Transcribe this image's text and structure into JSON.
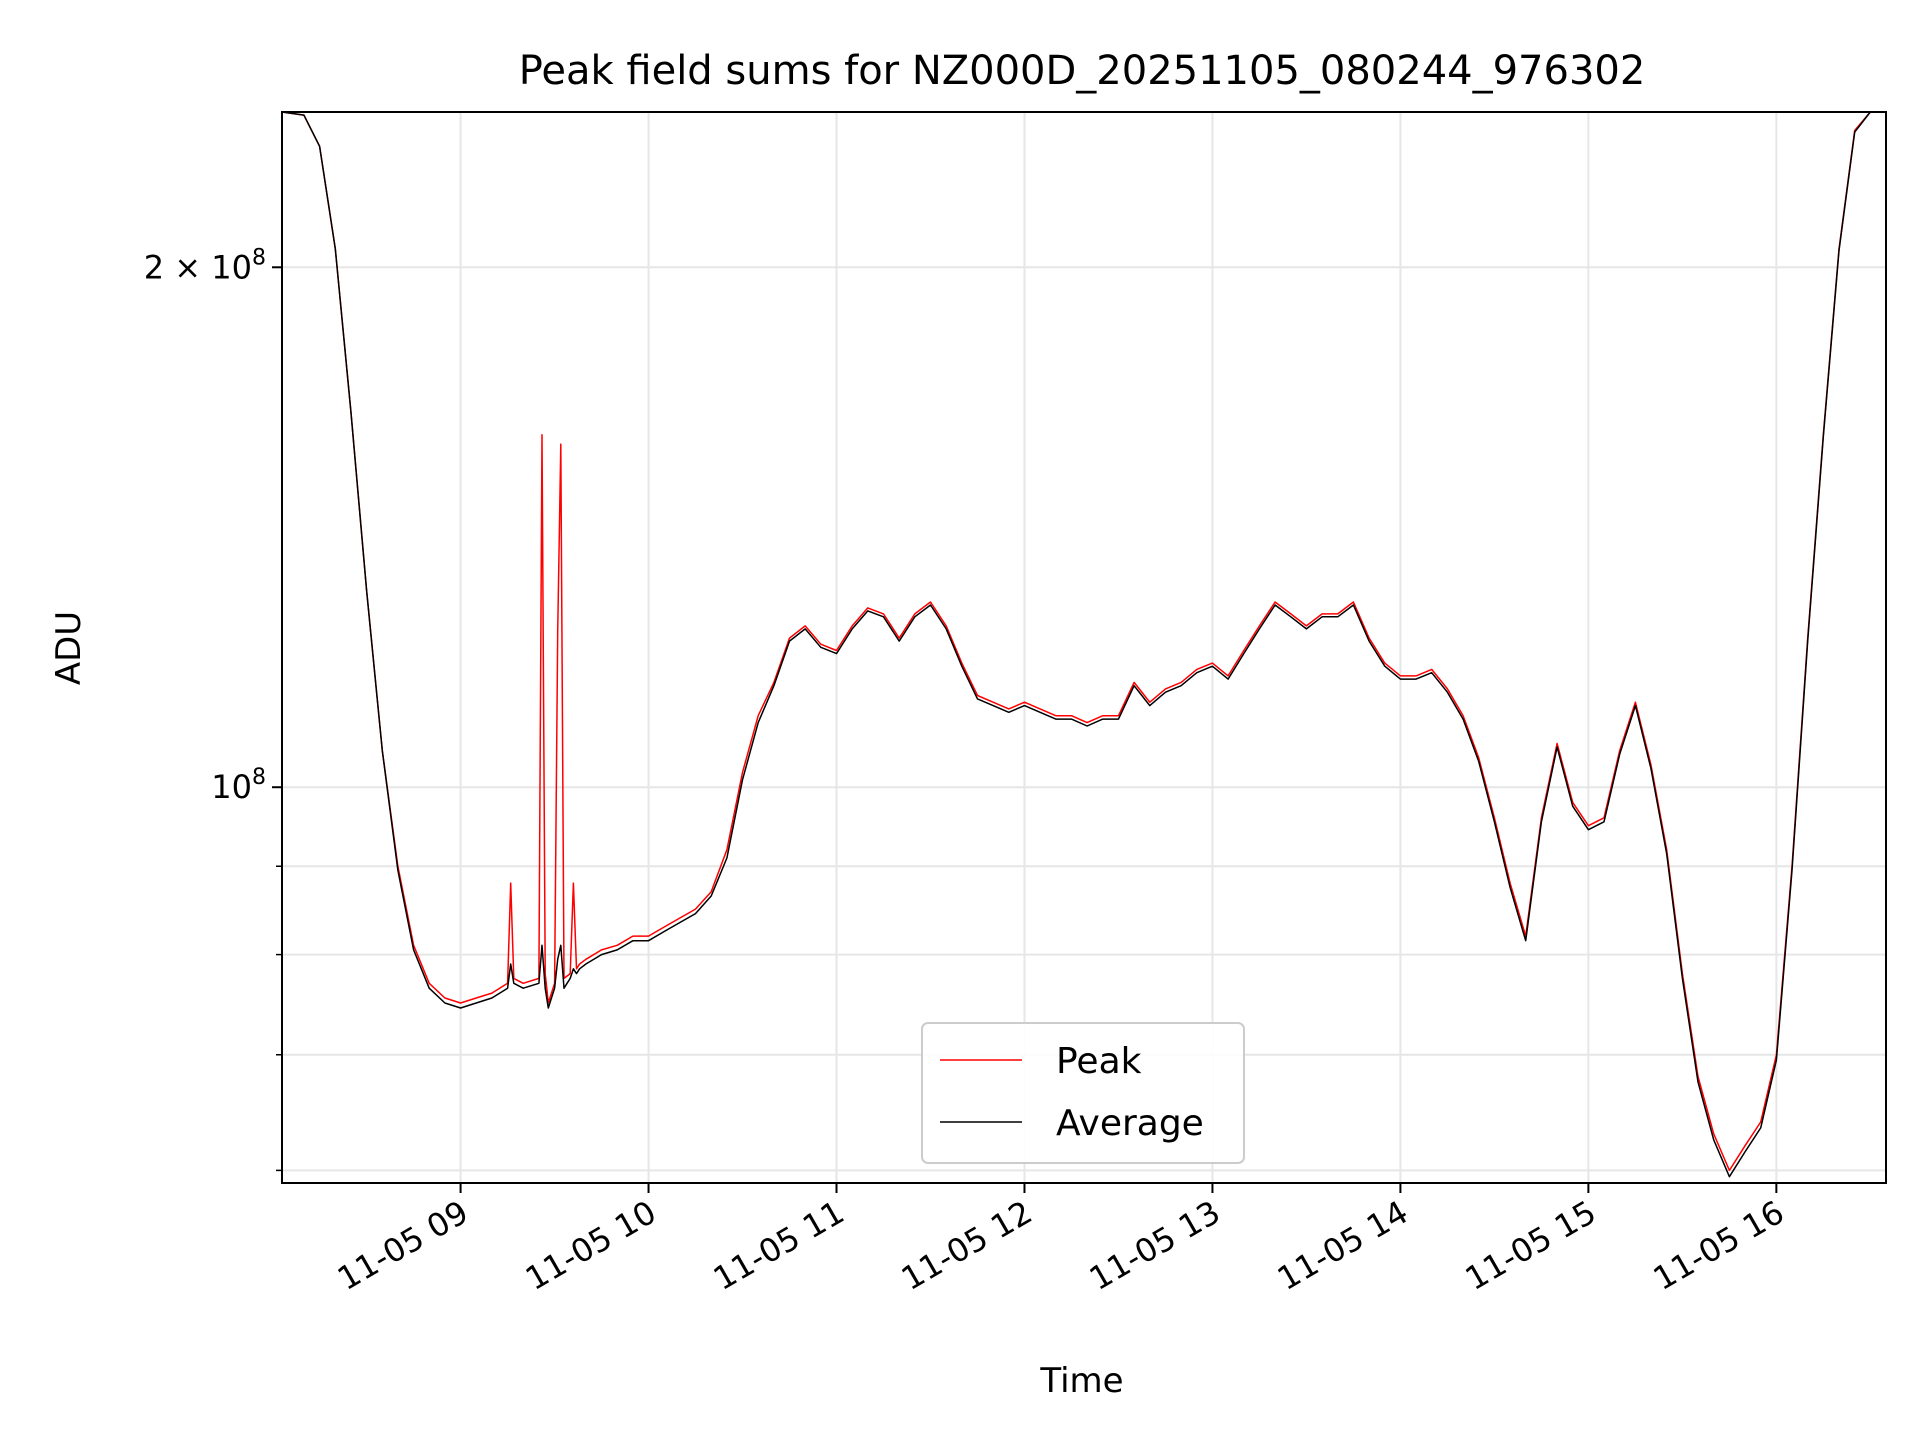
{
  "chart_data": {
    "type": "line",
    "title": "Peak field sums for NZ000D_20251105_080244_976302",
    "xlabel": "Time",
    "ylabel": "ADU",
    "yscale": "log",
    "x_range": [
      "2025-11-05 08:03",
      "2025-11-05 16:35"
    ],
    "ylim": [
      59000000,
      246000000
    ],
    "grid": true,
    "legend_position": "lower center",
    "x_ticks": [
      "11-05 09",
      "11-05 10",
      "11-05 11",
      "11-05 12",
      "11-05 13",
      "11-05 14",
      "11-05 15",
      "11-05 16"
    ],
    "y_ticks": [
      {
        "value": 100000000,
        "label": "10",
        "exp": "8"
      },
      {
        "value": 200000000,
        "label": "2 × 10",
        "exp": "8"
      }
    ],
    "y_minor_ticks": [
      60000000,
      70000000,
      80000000,
      90000000
    ],
    "series": [
      {
        "name": "Peak",
        "color": "#ff0000",
        "x": [
          "08:03",
          "08:10",
          "08:15",
          "08:20",
          "08:25",
          "08:30",
          "08:35",
          "08:40",
          "08:45",
          "08:50",
          "08:55",
          "09:00",
          "09:05",
          "09:10",
          "09:15",
          "09:16",
          "09:17",
          "09:20",
          "09:25",
          "09:26",
          "09:27",
          "09:28",
          "09:30",
          "09:31",
          "09:32",
          "09:33",
          "09:35",
          "09:36",
          "09:37",
          "09:38",
          "09:40",
          "09:45",
          "09:50",
          "09:55",
          "10:00",
          "10:05",
          "10:10",
          "10:15",
          "10:20",
          "10:25",
          "10:30",
          "10:35",
          "10:40",
          "10:45",
          "10:50",
          "10:55",
          "11:00",
          "11:05",
          "11:10",
          "11:15",
          "11:20",
          "11:25",
          "11:30",
          "11:35",
          "11:40",
          "11:45",
          "11:50",
          "11:55",
          "12:00",
          "12:05",
          "12:10",
          "12:15",
          "12:20",
          "12:25",
          "12:30",
          "12:35",
          "12:40",
          "12:45",
          "12:50",
          "12:55",
          "13:00",
          "13:05",
          "13:10",
          "13:15",
          "13:20",
          "13:25",
          "13:30",
          "13:35",
          "13:40",
          "13:45",
          "13:50",
          "13:55",
          "14:00",
          "14:05",
          "14:10",
          "14:15",
          "14:20",
          "14:25",
          "14:30",
          "14:35",
          "14:40",
          "14:45",
          "14:50",
          "14:55",
          "15:00",
          "15:05",
          "15:10",
          "15:15",
          "15:20",
          "15:25",
          "15:30",
          "15:35",
          "15:40",
          "15:45",
          "15:50",
          "15:55",
          "16:00",
          "16:05",
          "16:10",
          "16:15",
          "16:20",
          "16:25",
          "16:30",
          "16:35"
        ],
        "y": [
          246000000,
          245000000,
          235000000,
          205000000,
          165000000,
          130000000,
          105000000,
          90000000,
          81000000,
          77000000,
          75500000,
          75000000,
          75500000,
          76000000,
          77000000,
          88000000,
          77500000,
          77000000,
          77500000,
          160000000,
          78000000,
          75000000,
          77000000,
          123000000,
          158000000,
          77500000,
          78000000,
          88000000,
          78500000,
          79000000,
          79500000,
          80500000,
          81000000,
          82000000,
          82000000,
          83000000,
          84000000,
          85000000,
          87000000,
          92000000,
          102000000,
          110000000,
          115000000,
          122000000,
          124000000,
          121000000,
          120000000,
          124000000,
          127000000,
          126000000,
          122000000,
          126000000,
          128000000,
          124000000,
          118000000,
          113000000,
          112000000,
          111000000,
          112000000,
          111000000,
          110000000,
          110000000,
          109000000,
          110000000,
          110000000,
          115000000,
          112000000,
          114000000,
          115000000,
          117000000,
          118000000,
          116000000,
          120000000,
          124000000,
          128000000,
          126000000,
          124000000,
          126000000,
          126000000,
          128000000,
          122000000,
          118000000,
          116000000,
          116000000,
          117000000,
          114000000,
          110000000,
          104000000,
          96000000,
          88000000,
          82000000,
          96000000,
          106000000,
          98000000,
          95000000,
          96000000,
          105000000,
          112000000,
          103000000,
          92000000,
          78000000,
          68000000,
          63000000,
          60000000,
          62000000,
          64000000,
          70000000,
          90000000,
          122000000,
          160000000,
          205000000,
          240000000,
          246000000,
          246000000
        ]
      },
      {
        "name": "Average",
        "color": "#000000",
        "x": [
          "08:03",
          "08:10",
          "08:15",
          "08:20",
          "08:25",
          "08:30",
          "08:35",
          "08:40",
          "08:45",
          "08:50",
          "08:55",
          "09:00",
          "09:05",
          "09:10",
          "09:15",
          "09:16",
          "09:17",
          "09:20",
          "09:25",
          "09:26",
          "09:27",
          "09:28",
          "09:30",
          "09:31",
          "09:32",
          "09:33",
          "09:35",
          "09:36",
          "09:37",
          "09:38",
          "09:40",
          "09:45",
          "09:50",
          "09:55",
          "10:00",
          "10:05",
          "10:10",
          "10:15",
          "10:20",
          "10:25",
          "10:30",
          "10:35",
          "10:40",
          "10:45",
          "10:50",
          "10:55",
          "11:00",
          "11:05",
          "11:10",
          "11:15",
          "11:20",
          "11:25",
          "11:30",
          "11:35",
          "11:40",
          "11:45",
          "11:50",
          "11:55",
          "12:00",
          "12:05",
          "12:10",
          "12:15",
          "12:20",
          "12:25",
          "12:30",
          "12:35",
          "12:40",
          "12:45",
          "12:50",
          "12:55",
          "13:00",
          "13:05",
          "13:10",
          "13:15",
          "13:20",
          "13:25",
          "13:30",
          "13:35",
          "13:40",
          "13:45",
          "13:50",
          "13:55",
          "14:00",
          "14:05",
          "14:10",
          "14:15",
          "14:20",
          "14:25",
          "14:30",
          "14:35",
          "14:40",
          "14:45",
          "14:50",
          "14:55",
          "15:00",
          "15:05",
          "15:10",
          "15:15",
          "15:20",
          "15:25",
          "15:30",
          "15:35",
          "15:40",
          "15:45",
          "15:50",
          "15:55",
          "16:00",
          "16:05",
          "16:10",
          "16:15",
          "16:20",
          "16:25",
          "16:30",
          "16:35"
        ],
        "y": [
          246000000,
          245000000,
          235000000,
          205000000,
          165000000,
          130000000,
          105000000,
          89500000,
          80500000,
          76500000,
          75000000,
          74500000,
          75000000,
          75500000,
          76500000,
          79000000,
          77000000,
          76500000,
          77000000,
          81000000,
          76500000,
          74500000,
          76500000,
          79500000,
          81000000,
          76500000,
          77500000,
          78500000,
          78000000,
          78500000,
          79000000,
          80000000,
          80500000,
          81500000,
          81500000,
          82500000,
          83500000,
          84500000,
          86500000,
          91000000,
          101000000,
          109000000,
          114500000,
          121500000,
          123500000,
          120500000,
          119500000,
          123500000,
          126500000,
          125500000,
          121500000,
          125500000,
          127500000,
          123500000,
          117500000,
          112500000,
          111500000,
          110500000,
          111500000,
          110500000,
          109500000,
          109500000,
          108500000,
          109500000,
          109500000,
          114500000,
          111500000,
          113500000,
          114500000,
          116500000,
          117500000,
          115500000,
          119500000,
          123500000,
          127500000,
          125500000,
          123500000,
          125500000,
          125500000,
          127500000,
          121500000,
          117500000,
          115500000,
          115500000,
          116500000,
          113500000,
          109500000,
          103500000,
          95500000,
          87500000,
          81500000,
          95500000,
          105500000,
          97500000,
          94500000,
          95500000,
          104500000,
          111500000,
          102500000,
          91500000,
          77500000,
          67500000,
          62500000,
          59500000,
          61500000,
          63500000,
          69500000,
          89500000,
          121500000,
          159500000,
          204500000,
          239500000,
          246000000,
          246000000
        ]
      }
    ]
  }
}
